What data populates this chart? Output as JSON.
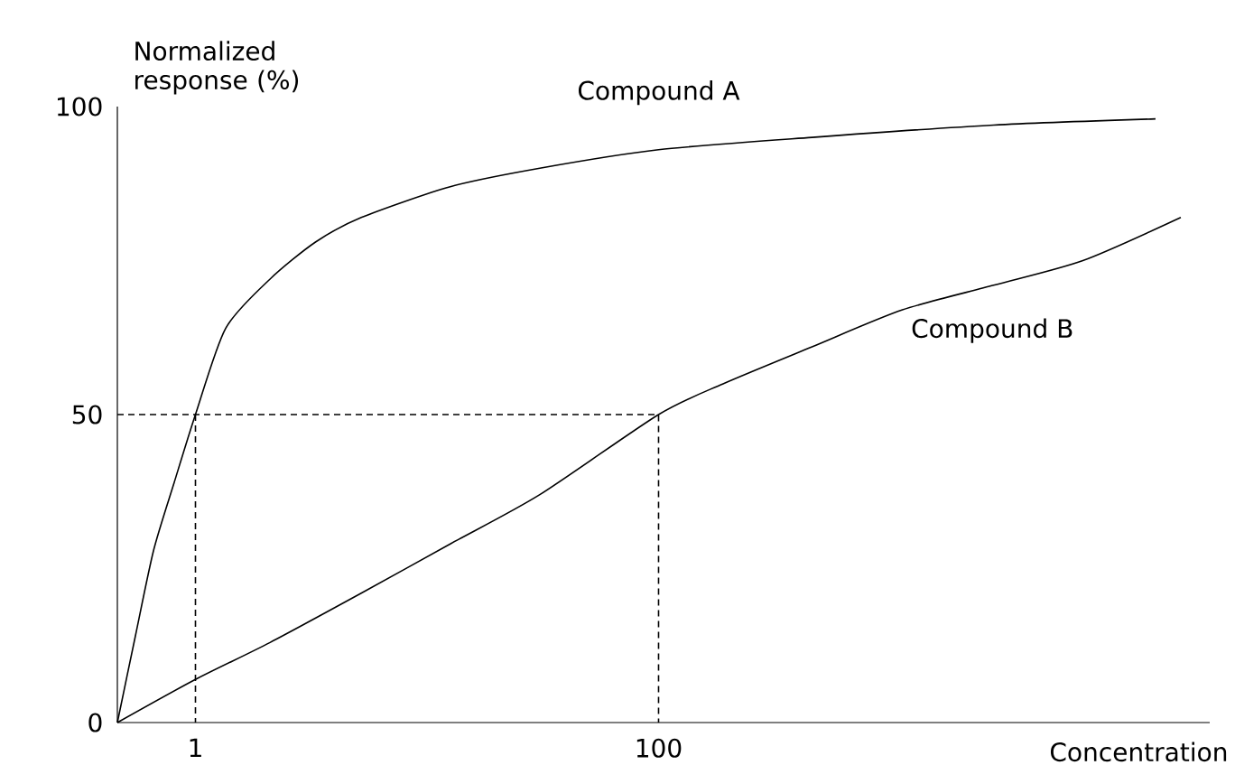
{
  "chart_data": {
    "type": "line",
    "xlabel": "Concentration",
    "ylabel": "Normalized response (%)",
    "log": "x",
    "xlim": [
      0.46,
      24000
    ],
    "ylim": [
      0,
      100
    ],
    "xticks": [
      1,
      100
    ],
    "yticks": [
      0,
      50,
      100
    ],
    "grid": false,
    "marker": "none",
    "line_style": "solid",
    "series": [
      {
        "name": "Compound A",
        "color": "#000000",
        "x": [
          0.46,
          0.55,
          0.66,
          0.81,
          1,
          1.35,
          2.1,
          3.3,
          5.2,
          12.6,
          30.7,
          100,
          460,
          2800,
          14000
        ],
        "values": [
          0,
          14,
          28,
          39,
          50,
          64,
          72,
          78,
          82,
          87,
          90,
          93,
          95,
          97,
          98
        ]
      },
      {
        "name": "Compound B",
        "color": "#000000",
        "x": [
          0.46,
          1,
          2.1,
          5.2,
          12.6,
          30.7,
          100,
          190,
          460,
          1130,
          2800,
          6800,
          18000
        ],
        "values": [
          0,
          7,
          13,
          21,
          29,
          37,
          50,
          55,
          61,
          67,
          71,
          75,
          82
        ]
      },
      {
        "color": "#000000",
        "line_style": "dashed",
        "x": [
          0.46,
          100,
          100
        ],
        "values": [
          50,
          50,
          0
        ]
      },
      {
        "color": "#000000",
        "line_style": "dashed",
        "x": [
          1,
          1
        ],
        "values": [
          50,
          0
        ]
      }
    ]
  }
}
